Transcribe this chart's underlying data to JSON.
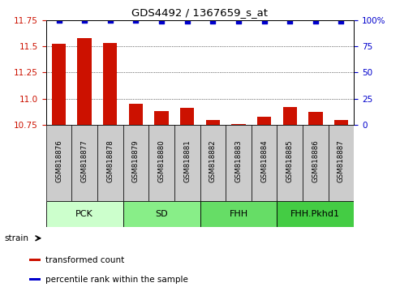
{
  "title": "GDS4492 / 1367659_s_at",
  "samples": [
    "GSM818876",
    "GSM818877",
    "GSM818878",
    "GSM818879",
    "GSM818880",
    "GSM818881",
    "GSM818882",
    "GSM818883",
    "GSM818884",
    "GSM818885",
    "GSM818886",
    "GSM818887"
  ],
  "bar_values": [
    11.52,
    11.58,
    11.53,
    10.95,
    10.88,
    10.91,
    10.8,
    10.76,
    10.83,
    10.92,
    10.87,
    10.8
  ],
  "percentile_values": [
    100,
    100,
    100,
    100,
    99,
    99,
    99,
    99,
    99,
    99,
    99,
    99
  ],
  "y_min": 10.75,
  "y_max": 11.75,
  "y_ticks": [
    10.75,
    11.0,
    11.25,
    11.5,
    11.75
  ],
  "y_right_ticks": [
    0,
    25,
    50,
    75,
    100
  ],
  "bar_color": "#cc1100",
  "dot_color": "#0000cc",
  "groups": [
    {
      "label": "PCK",
      "start": 0,
      "end": 3,
      "color": "#ccffcc"
    },
    {
      "label": "SD",
      "start": 3,
      "end": 6,
      "color": "#88ee88"
    },
    {
      "label": "FHH",
      "start": 6,
      "end": 9,
      "color": "#66dd66"
    },
    {
      "label": "FHH.Pkhd1",
      "start": 9,
      "end": 12,
      "color": "#44cc44"
    }
  ],
  "legend_items": [
    {
      "label": "transformed count",
      "color": "#cc1100"
    },
    {
      "label": "percentile rank within the sample",
      "color": "#0000cc"
    }
  ],
  "strain_label": "strain",
  "bar_width": 0.55,
  "sample_box_color": "#cccccc",
  "tick_label_color_left": "#cc1100",
  "tick_label_color_right": "#0000cc"
}
